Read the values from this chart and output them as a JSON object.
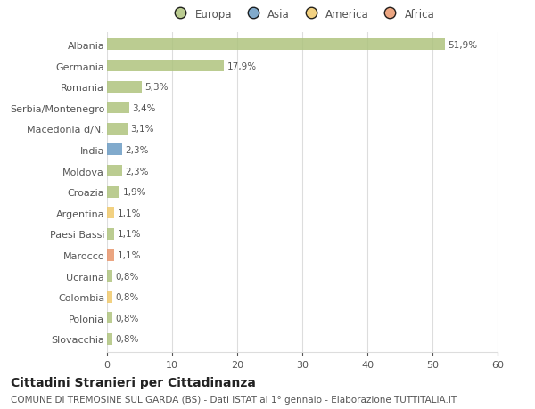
{
  "categories": [
    "Albania",
    "Germania",
    "Romania",
    "Serbia/Montenegro",
    "Macedonia d/N.",
    "India",
    "Moldova",
    "Croazia",
    "Argentina",
    "Paesi Bassi",
    "Marocco",
    "Ucraina",
    "Colombia",
    "Polonia",
    "Slovacchia"
  ],
  "values": [
    51.9,
    17.9,
    5.3,
    3.4,
    3.1,
    2.3,
    2.3,
    1.9,
    1.1,
    1.1,
    1.1,
    0.8,
    0.8,
    0.8,
    0.8
  ],
  "labels": [
    "51,9%",
    "17,9%",
    "5,3%",
    "3,4%",
    "3,1%",
    "2,3%",
    "2,3%",
    "1,9%",
    "1,1%",
    "1,1%",
    "1,1%",
    "0,8%",
    "0,8%",
    "0,8%",
    "0,8%"
  ],
  "colors": [
    "#afc47e",
    "#afc47e",
    "#afc47e",
    "#afc47e",
    "#afc47e",
    "#6b9bc3",
    "#afc47e",
    "#afc47e",
    "#f0c96b",
    "#afc47e",
    "#e8956b",
    "#afc47e",
    "#f0c96b",
    "#afc47e",
    "#afc47e"
  ],
  "legend_labels": [
    "Europa",
    "Asia",
    "America",
    "Africa"
  ],
  "legend_colors": [
    "#afc47e",
    "#6b9bc3",
    "#f0c96b",
    "#e8956b"
  ],
  "title": "Cittadini Stranieri per Cittadinanza",
  "subtitle": "COMUNE DI TREMOSINE SUL GARDA (BS) - Dati ISTAT al 1° gennaio - Elaborazione TUTTITALIA.IT",
  "xlim": [
    0,
    60
  ],
  "xticks": [
    0,
    10,
    20,
    30,
    40,
    50,
    60
  ],
  "background_color": "#ffffff",
  "grid_color": "#dddddd",
  "bar_height": 0.55,
  "title_fontsize": 10,
  "subtitle_fontsize": 7.5,
  "label_fontsize": 7.5,
  "tick_fontsize": 8,
  "legend_fontsize": 8.5
}
